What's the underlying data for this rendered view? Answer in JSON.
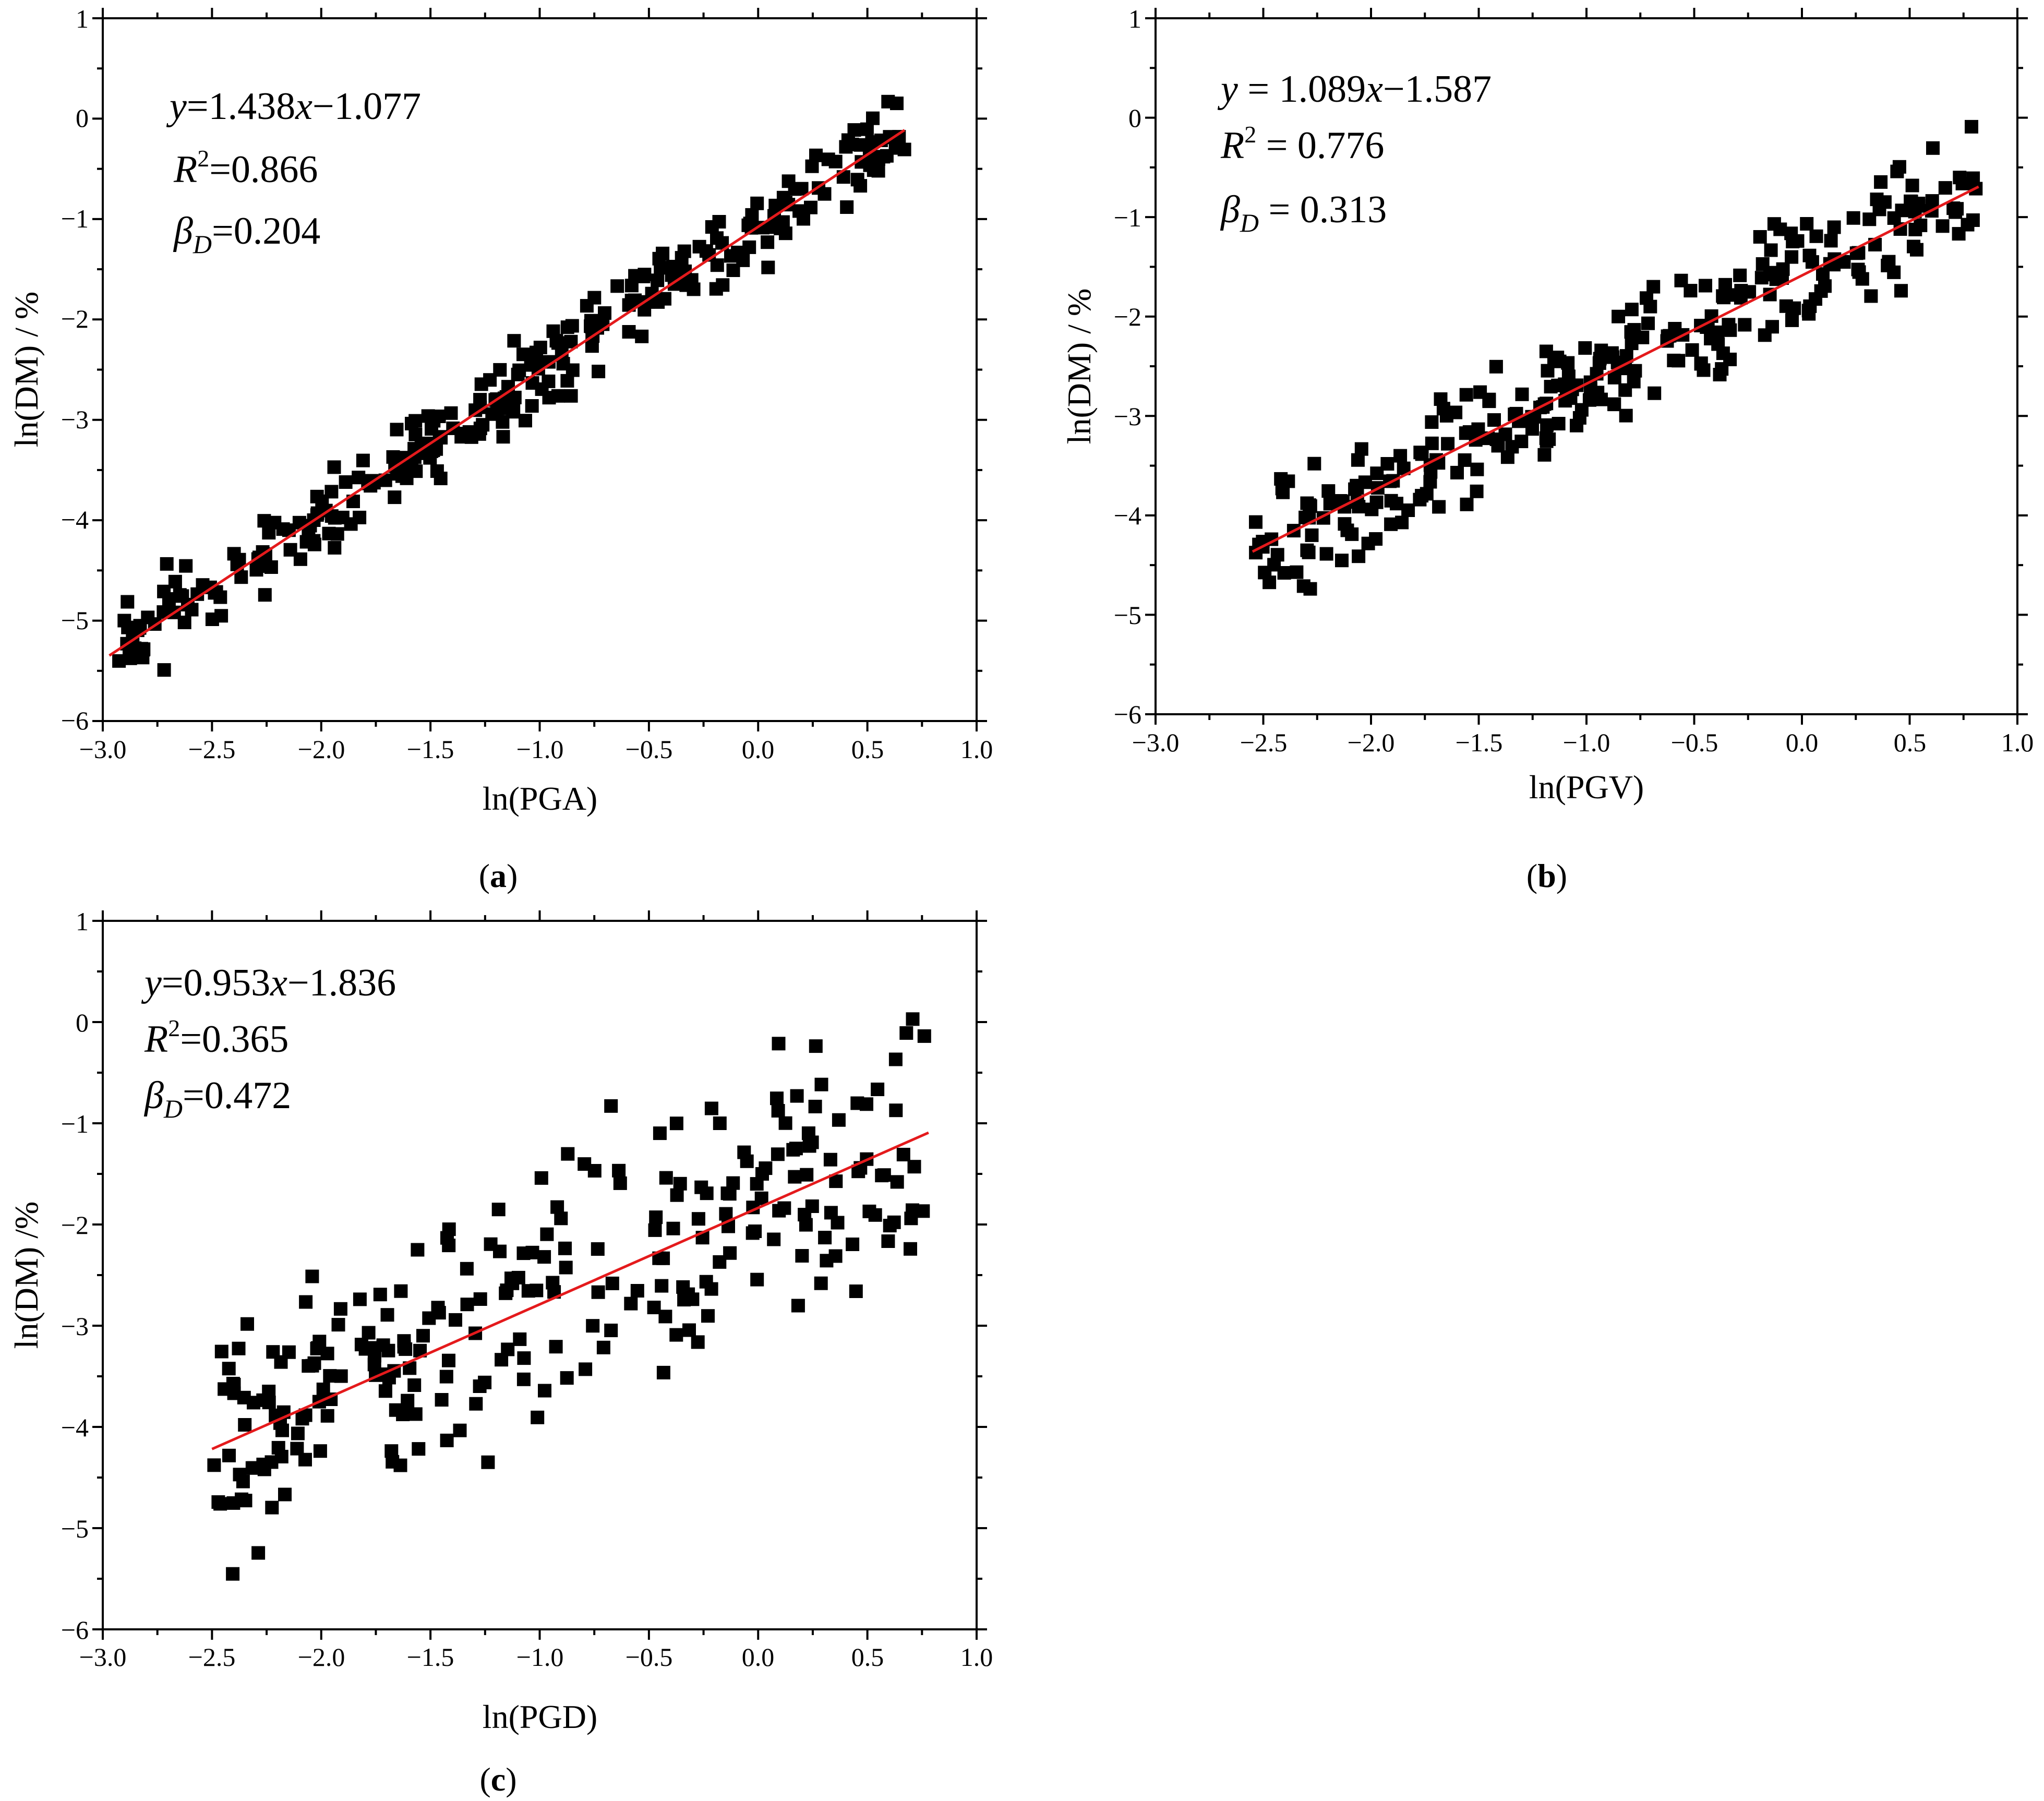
{
  "chart_data": [
    {
      "type": "scatter",
      "panel_label": "a",
      "xlabel": "ln(PGA)",
      "ylabel": "ln(DM) / %",
      "xlim": [
        -3.0,
        1.0
      ],
      "ylim": [
        -6,
        1
      ],
      "xticks": [
        "−3.0",
        "−2.5",
        "−2.0",
        "−1.5",
        "−1.0",
        "−0.5",
        "0.0",
        "0.5",
        "1.0"
      ],
      "yticks": [
        "1",
        "0",
        "−1",
        "−2",
        "−3",
        "−4",
        "−5",
        "−6"
      ],
      "fit": {
        "slope": 1.438,
        "intercept": -1.077,
        "x_range": [
          -2.97,
          0.67
        ]
      },
      "annotation": {
        "eq_var": "y",
        "eq_rest": "=1.438",
        "eq_xvar": "x",
        "eq_tail": "−1.077",
        "r2_var": "R",
        "r2_sup": "2",
        "r2_val": "=0.866",
        "beta_var": "β",
        "beta_sub": "D",
        "beta_val": "=0.204"
      },
      "n_points": 300,
      "spread": 0.33,
      "seed": 11
    },
    {
      "type": "scatter",
      "panel_label": "b",
      "xlabel": "ln(PGV)",
      "ylabel": "ln(DM) / %",
      "xlim": [
        -3.0,
        1.0
      ],
      "ylim": [
        -6,
        1
      ],
      "xticks": [
        "−3.0",
        "−2.5",
        "−2.0",
        "−1.5",
        "−1.0",
        "−0.5",
        "0.0",
        "0.5",
        "1.0"
      ],
      "yticks": [
        "1",
        "0",
        "−1",
        "−2",
        "−3",
        "−4",
        "−5",
        "−6"
      ],
      "fit": {
        "slope": 1.089,
        "intercept": -1.587,
        "x_range": [
          -2.55,
          0.82
        ]
      },
      "annotation": {
        "eq_var": "y",
        "eq_rest": " = 1.089",
        "eq_xvar": "x",
        "eq_tail": "−1.587",
        "r2_var": "R",
        "r2_sup": "2",
        "r2_val": " = 0.776",
        "beta_var": "β",
        "beta_sub": "D",
        "beta_val": " = 0.313"
      },
      "n_points": 300,
      "spread": 0.52,
      "seed": 23
    },
    {
      "type": "scatter",
      "panel_label": "c",
      "xlabel": "ln(PGD)",
      "ylabel": "ln(DM) /%",
      "xlim": [
        -3.0,
        1.0
      ],
      "ylim": [
        -6,
        1
      ],
      "xticks": [
        "−3.0",
        "−2.5",
        "−2.0",
        "−1.5",
        "−1.0",
        "−0.5",
        "0.0",
        "0.5",
        "1.0"
      ],
      "yticks": [
        "1",
        "0",
        "−1",
        "−2",
        "−3",
        "−4",
        "−5",
        "−6"
      ],
      "fit": {
        "slope": 0.953,
        "intercept": -1.836,
        "x_range": [
          -2.5,
          0.78
        ]
      },
      "annotation": {
        "eq_var": "y",
        "eq_rest": "=0.953",
        "eq_xvar": "x",
        "eq_tail": "−1.836",
        "r2_var": "R",
        "r2_sup": "2",
        "r2_val": "=0.365",
        "beta_var": "β",
        "beta_sub": "D",
        "beta_val": "=0.472"
      },
      "n_points": 270,
      "spread": 1.05,
      "seed": 37
    }
  ]
}
